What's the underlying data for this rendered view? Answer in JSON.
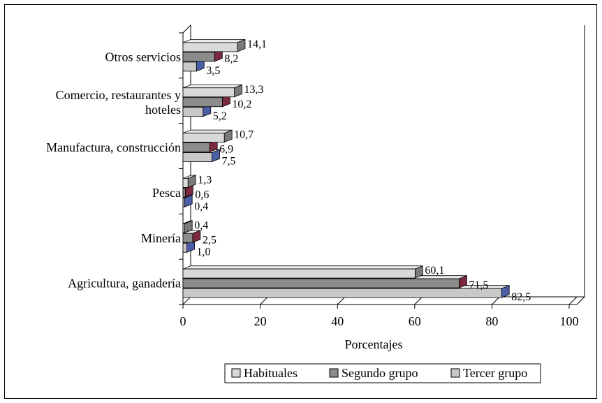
{
  "chart_data": {
    "type": "bar",
    "orientation": "horizontal",
    "three_d": true,
    "title": "",
    "xlabel": "Porcentajes",
    "ylabel": "",
    "xlim": [
      0,
      100
    ],
    "xticks": [
      0,
      20,
      40,
      60,
      80,
      100
    ],
    "xtick_labels": [
      "0",
      "20",
      "40",
      "60",
      "80",
      "100"
    ],
    "grid": false,
    "legend_position": "bottom",
    "categories": [
      [
        "Otros servicios"
      ],
      [
        "Comercio, restaurantes y",
        "hoteles"
      ],
      [
        "Manufactura, construcción"
      ],
      [
        "Pesca"
      ],
      [
        "Minería"
      ],
      [
        "Agricultura, ganadería"
      ]
    ],
    "series": [
      {
        "name": "Habituales",
        "color": "#d9d9d9",
        "values": [
          14.1,
          13.3,
          10.7,
          1.3,
          0.4,
          60.1
        ],
        "labels": [
          "14,1",
          "13,3",
          "10,7",
          "1,3",
          "0,4",
          "60,1"
        ]
      },
      {
        "name": "Segundo grupo",
        "color": "#8c8c8c",
        "values": [
          8.2,
          10.2,
          6.9,
          0.6,
          2.5,
          71.5
        ],
        "labels": [
          "8,2",
          "10,2",
          "6,9",
          "0,6",
          "2,5",
          "71,5"
        ]
      },
      {
        "name": "Tercer grupo",
        "color": "#c8c8c8",
        "values": [
          3.5,
          5.2,
          7.5,
          0.4,
          1.0,
          82.5
        ],
        "labels": [
          "3,5",
          "5,2",
          "7,5",
          "0,4",
          "1,0",
          "82,5"
        ]
      }
    ],
    "side_colors": [
      "#7a7a7a",
      "#7a2a3e",
      "#4a5ea6"
    ],
    "legend": [
      "Habituales",
      "Segundo grupo",
      "Tercer grupo"
    ]
  }
}
